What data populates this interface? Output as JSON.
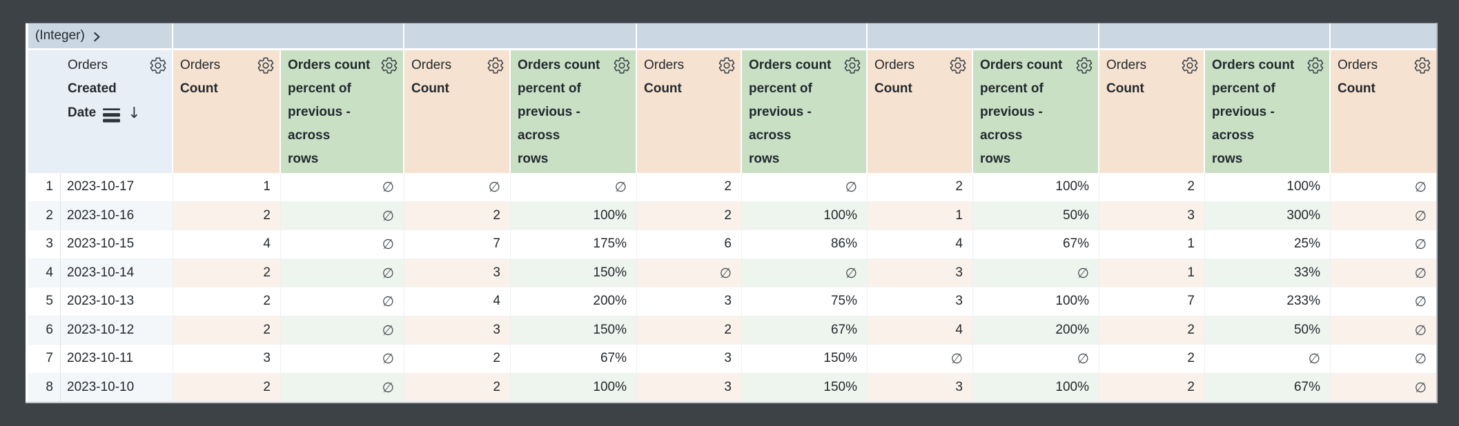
{
  "pivot_band": {
    "label": "(Integer)",
    "expand_icon": "chevron-right-icon",
    "group_count": 6
  },
  "headers": {
    "row_number": "",
    "dimension": {
      "view": "Orders",
      "field_lines": [
        "Created",
        "Date"
      ],
      "full_label": "Orders Created Date",
      "icons": [
        "subtotal-icon",
        "sort-desc-icon",
        "gear-icon"
      ],
      "sort": "descending"
    },
    "count": {
      "view": "Orders",
      "field": "Count",
      "icon": "gear-icon"
    },
    "percent_calc": {
      "lines": [
        "Orders count",
        "percent of",
        "previous -",
        "across",
        "rows"
      ],
      "full_label": "Orders count percent of previous - across rows",
      "icon": "gear-icon"
    }
  },
  "column_types": [
    "count",
    "percent",
    "count",
    "percent",
    "count",
    "percent",
    "count",
    "percent",
    "count",
    "percent",
    "count"
  ],
  "null_symbol": "∅",
  "rows": [
    {
      "n": "1",
      "date": "2023-10-17",
      "values": [
        "1",
        "∅",
        "∅",
        "∅",
        "2",
        "∅",
        "2",
        "100%",
        "2",
        "100%",
        "∅"
      ]
    },
    {
      "n": "2",
      "date": "2023-10-16",
      "values": [
        "2",
        "∅",
        "2",
        "100%",
        "2",
        "100%",
        "1",
        "50%",
        "3",
        "300%",
        "∅"
      ]
    },
    {
      "n": "3",
      "date": "2023-10-15",
      "values": [
        "4",
        "∅",
        "7",
        "175%",
        "6",
        "86%",
        "4",
        "67%",
        "1",
        "25%",
        "∅"
      ]
    },
    {
      "n": "4",
      "date": "2023-10-14",
      "values": [
        "2",
        "∅",
        "3",
        "150%",
        "∅",
        "∅",
        "3",
        "∅",
        "1",
        "33%",
        "∅"
      ]
    },
    {
      "n": "5",
      "date": "2023-10-13",
      "values": [
        "2",
        "∅",
        "4",
        "200%",
        "3",
        "75%",
        "3",
        "100%",
        "7",
        "233%",
        "∅"
      ]
    },
    {
      "n": "6",
      "date": "2023-10-12",
      "values": [
        "2",
        "∅",
        "3",
        "150%",
        "2",
        "67%",
        "4",
        "200%",
        "2",
        "50%",
        "∅"
      ]
    },
    {
      "n": "7",
      "date": "2023-10-11",
      "values": [
        "3",
        "∅",
        "2",
        "67%",
        "3",
        "150%",
        "∅",
        "∅",
        "2",
        "∅",
        "∅"
      ]
    },
    {
      "n": "8",
      "date": "2023-10-10",
      "values": [
        "2",
        "∅",
        "2",
        "100%",
        "3",
        "150%",
        "3",
        "100%",
        "2",
        "67%",
        "∅"
      ]
    }
  ],
  "colors": {
    "frame": "#3d4247",
    "band_bg": "#cbd7e3",
    "dimension_header_bg": "#e8eef5",
    "count_header_bg": "#f6e2d1",
    "percent_header_bg": "#c9e0c5",
    "stripe_dimension": "#f4f7fa",
    "stripe_count": "#f9f1ea",
    "stripe_percent": "#eef5ee",
    "text": "#23292e",
    "null": "#454c53"
  }
}
